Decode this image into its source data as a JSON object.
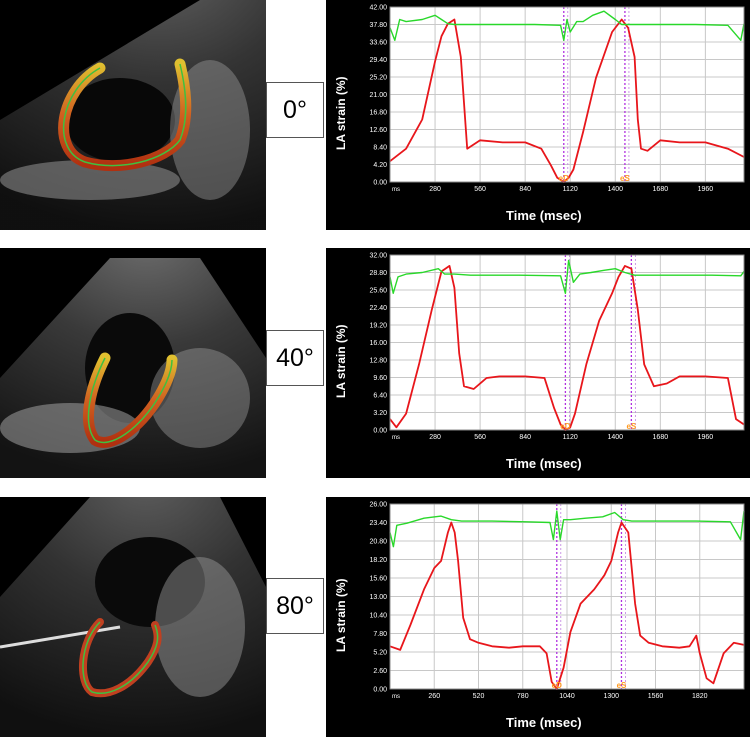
{
  "angles": [
    "0°",
    "40°",
    "80°"
  ],
  "chart_data": [
    {
      "type": "line",
      "ylabel": "LA strain (%)",
      "xlabel": "Time (msec)",
      "x_unit_label": "ms",
      "yticks": [
        "0.00",
        "4.20",
        "8.40",
        "12.60",
        "16.80",
        "21.00",
        "25.20",
        "29.40",
        "33.60",
        "37.80",
        "42.00"
      ],
      "ylim": [
        0,
        42
      ],
      "xticks": [
        "280",
        "560",
        "840",
        "1120",
        "1400",
        "1680",
        "1960"
      ],
      "xlim": [
        0,
        2200
      ],
      "markers": [
        {
          "label": "eD",
          "x": 1080
        },
        {
          "label": "eS",
          "x": 1460
        }
      ],
      "series": [
        {
          "color": "#e8161b",
          "x": [
            0,
            100,
            200,
            280,
            320,
            360,
            400,
            440,
            480,
            560,
            700,
            840,
            940,
            1000,
            1040,
            1080,
            1110,
            1140,
            1200,
            1280,
            1380,
            1440,
            1480,
            1520,
            1540,
            1560,
            1600,
            1680,
            1800,
            1960,
            2100,
            2200
          ],
          "y": [
            5,
            8,
            15,
            29,
            35,
            38,
            39,
            30,
            8,
            10,
            9.5,
            9.5,
            8,
            4,
            1,
            0,
            1,
            3,
            12,
            25,
            36,
            39,
            37,
            30,
            15,
            8,
            7.5,
            10,
            9.5,
            9.5,
            8,
            6
          ]
        },
        {
          "color": "#29d82a",
          "x": [
            0,
            30,
            60,
            100,
            200,
            280,
            320,
            360,
            400,
            600,
            900,
            1060,
            1080,
            1100,
            1120,
            1160,
            1200,
            1260,
            1330,
            1400,
            1440,
            1600,
            1900,
            2100,
            2180,
            2200
          ],
          "y": [
            37,
            34,
            39,
            38.5,
            39,
            40,
            39,
            38,
            37.8,
            37.8,
            37.8,
            37.6,
            34,
            39,
            36,
            38.5,
            38.5,
            40,
            41,
            39,
            37.8,
            37.8,
            37.8,
            37.6,
            34,
            38
          ]
        }
      ]
    },
    {
      "type": "line",
      "ylabel": "LA strain (%)",
      "xlabel": "Time (msec)",
      "x_unit_label": "ms",
      "yticks": [
        "0.00",
        "3.20",
        "6.40",
        "9.60",
        "12.80",
        "16.00",
        "19.20",
        "22.40",
        "25.60",
        "28.80",
        "32.00"
      ],
      "ylim": [
        0,
        32
      ],
      "xticks": [
        "280",
        "560",
        "840",
        "1120",
        "1400",
        "1680",
        "1960"
      ],
      "xlim": [
        0,
        2200
      ],
      "markers": [
        {
          "label": "eD",
          "x": 1090
        },
        {
          "label": "eS",
          "x": 1500
        }
      ],
      "series": [
        {
          "color": "#e8161b",
          "x": [
            0,
            40,
            100,
            180,
            260,
            320,
            370,
            400,
            430,
            460,
            520,
            600,
            680,
            840,
            960,
            1020,
            1060,
            1090,
            1120,
            1150,
            1220,
            1300,
            1380,
            1420,
            1460,
            1500,
            1540,
            1580,
            1640,
            1720,
            1800,
            1960,
            2100,
            2150,
            2200
          ],
          "y": [
            2,
            0.5,
            3,
            12,
            22,
            29,
            30,
            26,
            14,
            8,
            7.5,
            9.5,
            9.8,
            9.8,
            9.5,
            4,
            1,
            0,
            0.5,
            3,
            12,
            20,
            25,
            28,
            30,
            29.5,
            22,
            12,
            8,
            8.5,
            9.8,
            9.8,
            9.5,
            2,
            1
          ]
        },
        {
          "color": "#29d82a",
          "x": [
            0,
            20,
            50,
            100,
            200,
            300,
            340,
            400,
            500,
            800,
            1060,
            1090,
            1110,
            1140,
            1180,
            1250,
            1330,
            1400,
            1460,
            1520,
            1700,
            2000,
            2180,
            2200
          ],
          "y": [
            28,
            25,
            28,
            28.5,
            28.8,
            29.5,
            28.5,
            28.5,
            28.3,
            28.3,
            28.2,
            25,
            31,
            27,
            28.5,
            28.8,
            29.2,
            29.5,
            28.8,
            28.3,
            28.3,
            28.3,
            28.2,
            29
          ]
        }
      ]
    },
    {
      "type": "line",
      "ylabel": "LA strain (%)",
      "xlabel": "Time (msec)",
      "x_unit_label": "ms",
      "yticks": [
        "0.00",
        "2.60",
        "5.20",
        "7.80",
        "10.40",
        "13.00",
        "15.60",
        "18.20",
        "20.80",
        "23.40",
        "26.00"
      ],
      "ylim": [
        0,
        26
      ],
      "xticks": [
        "260",
        "520",
        "780",
        "1040",
        "1300",
        "1560",
        "1820"
      ],
      "xlim": [
        0,
        2080
      ],
      "markers": [
        {
          "label": "eD",
          "x": 980
        },
        {
          "label": "eS",
          "x": 1360
        }
      ],
      "series": [
        {
          "color": "#e8161b",
          "x": [
            0,
            60,
            120,
            200,
            260,
            300,
            340,
            360,
            380,
            400,
            430,
            470,
            520,
            600,
            700,
            780,
            880,
            920,
            950,
            980,
            1000,
            1020,
            1060,
            1120,
            1200,
            1260,
            1300,
            1340,
            1360,
            1400,
            1440,
            1470,
            1520,
            1600,
            1700,
            1760,
            1800,
            1820,
            1860,
            1900,
            1960,
            2020,
            2080
          ],
          "y": [
            6,
            5.5,
            9,
            14,
            17,
            18,
            22,
            23.4,
            22,
            18,
            10,
            7,
            6.5,
            6,
            5.8,
            6,
            6,
            5,
            1,
            0,
            1.5,
            3,
            8,
            12,
            14,
            16,
            18,
            22,
            23.4,
            22,
            12,
            7.5,
            6.5,
            6,
            5.8,
            6,
            7.5,
            5,
            1.5,
            0.8,
            5,
            6.5,
            6.2
          ]
        },
        {
          "color": "#29d82a",
          "x": [
            0,
            20,
            40,
            100,
            200,
            300,
            360,
            420,
            600,
            800,
            940,
            960,
            980,
            1000,
            1020,
            1060,
            1150,
            1250,
            1320,
            1370,
            1420,
            1600,
            1800,
            2000,
            2060,
            2080
          ],
          "y": [
            22,
            20,
            23,
            23.3,
            24,
            24.3,
            23.8,
            23.6,
            23.6,
            23.5,
            23.4,
            21,
            25,
            21,
            23.8,
            23.8,
            24,
            24.2,
            24.8,
            23.8,
            23.6,
            23.6,
            23.6,
            23.5,
            21,
            25
          ]
        }
      ]
    }
  ]
}
